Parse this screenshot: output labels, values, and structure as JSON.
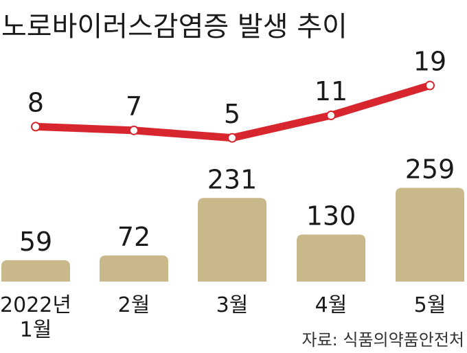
{
  "title": "노로바이러스감염증 발생 추이",
  "source": "자료: 식품의약품안전처",
  "colors": {
    "bar": "#c9b88a",
    "line": "#d7262e",
    "marker_fill": "#ffffff",
    "text": "#1a1a1a"
  },
  "chart_data": [
    {
      "type": "line",
      "categories": [
        "2022년 1월",
        "2월",
        "3월",
        "4월",
        "5월"
      ],
      "values": [
        8,
        7,
        5,
        11,
        19
      ],
      "data_labels": [
        "8",
        "7",
        "5",
        "11",
        "19"
      ]
    },
    {
      "type": "bar",
      "categories": [
        "2022년 1월",
        "2월",
        "3월",
        "4월",
        "5월"
      ],
      "category_labels": [
        [
          "2022년",
          "1월"
        ],
        [
          "2월"
        ],
        [
          "3월"
        ],
        [
          "4월"
        ],
        [
          "5월"
        ]
      ],
      "values": [
        59,
        72,
        231,
        130,
        259
      ],
      "data_labels": [
        "59",
        "72",
        "231",
        "130",
        "259"
      ]
    }
  ]
}
